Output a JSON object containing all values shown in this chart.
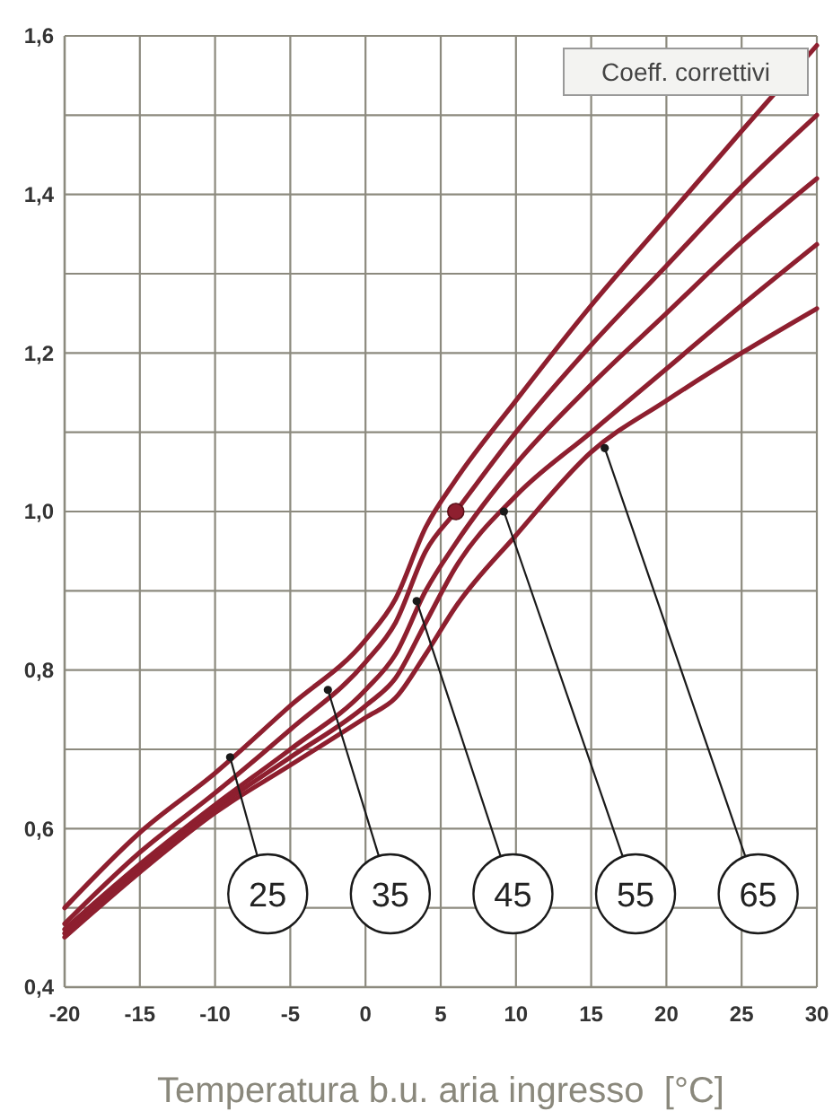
{
  "chart_data": {
    "type": "line",
    "xlabel": "Temperatura b.u. aria ingresso  [°C]",
    "ylabel": "Coeff. correttivi",
    "xlim": [
      -20,
      30
    ],
    "xticks": [
      -20,
      -15,
      -10,
      -5,
      0,
      5,
      10,
      15,
      20,
      25,
      30
    ],
    "ylim": [
      0.4,
      1.6
    ],
    "yticks": [
      {
        "value": 0.4,
        "label": "0,4"
      },
      {
        "value": 0.5,
        "label": null
      },
      {
        "value": 0.6,
        "label": "0,6"
      },
      {
        "value": 0.7,
        "label": null
      },
      {
        "value": 0.8,
        "label": "0,8"
      },
      {
        "value": 0.9,
        "label": null
      },
      {
        "value": 1.0,
        "label": "1,0"
      },
      {
        "value": 1.1,
        "label": null
      },
      {
        "value": 1.2,
        "label": "1,2"
      },
      {
        "value": 1.3,
        "label": null
      },
      {
        "value": 1.4,
        "label": "1,4"
      },
      {
        "value": 1.5,
        "label": null
      },
      {
        "value": 1.6,
        "label": "1,6"
      }
    ],
    "grid": true,
    "marker": "none",
    "line_style": "solid",
    "series": [
      {
        "color": "#8e1f2f",
        "x": [
          -20,
          -15,
          -10,
          -5,
          0,
          2,
          4,
          6,
          10,
          15,
          20,
          25,
          30
        ],
        "values": [
          0.5,
          0.595,
          0.67,
          0.755,
          0.838,
          0.89,
          0.98,
          1.04,
          1.14,
          1.26,
          1.37,
          1.48,
          1.588
        ]
      },
      {
        "color": "#8e1f2f",
        "x": [
          -20,
          -15,
          -10,
          -5,
          0,
          2,
          4,
          6,
          10,
          15,
          20,
          25,
          30
        ],
        "values": [
          0.48,
          0.57,
          0.645,
          0.725,
          0.81,
          0.86,
          0.95,
          1.0,
          1.1,
          1.21,
          1.31,
          1.41,
          1.5
        ]
      },
      {
        "color": "#8e1f2f",
        "x": [
          -20,
          -15,
          -10,
          -5,
          0,
          2,
          4,
          6,
          10,
          15,
          20,
          25,
          30
        ],
        "values": [
          0.473,
          0.555,
          0.63,
          0.7,
          0.775,
          0.82,
          0.9,
          0.96,
          1.06,
          1.16,
          1.25,
          1.34,
          1.42
        ]
      },
      {
        "color": "#8e1f2f",
        "x": [
          -20,
          -15,
          -10,
          -5,
          0,
          2,
          4,
          6,
          10,
          15,
          20,
          25,
          30
        ],
        "values": [
          0.468,
          0.55,
          0.625,
          0.69,
          0.755,
          0.79,
          0.86,
          0.93,
          1.02,
          1.1,
          1.18,
          1.26,
          1.337
        ]
      },
      {
        "color": "#8e1f2f",
        "x": [
          -20,
          -15,
          -10,
          -5,
          0,
          2,
          4,
          6,
          10,
          15,
          20,
          25,
          30
        ],
        "values": [
          0.463,
          0.545,
          0.62,
          0.68,
          0.74,
          0.765,
          0.82,
          0.88,
          0.97,
          1.075,
          1.14,
          1.2,
          1.256
        ]
      },
      {
        "type": "scatter",
        "marker": "circle",
        "color": "#8e1f2f",
        "x": [
          6
        ],
        "values": [
          1.0
        ]
      }
    ],
    "annotations": [
      {
        "text": "25",
        "x": -9,
        "y": 0.69
      },
      {
        "text": "35",
        "x": -2.5,
        "y": 0.775
      },
      {
        "text": "45",
        "x": 3.4,
        "y": 0.887
      },
      {
        "text": "55",
        "x": 9.2,
        "y": 1.0
      },
      {
        "text": "65",
        "x": 15.9,
        "y": 1.08
      }
    ]
  }
}
